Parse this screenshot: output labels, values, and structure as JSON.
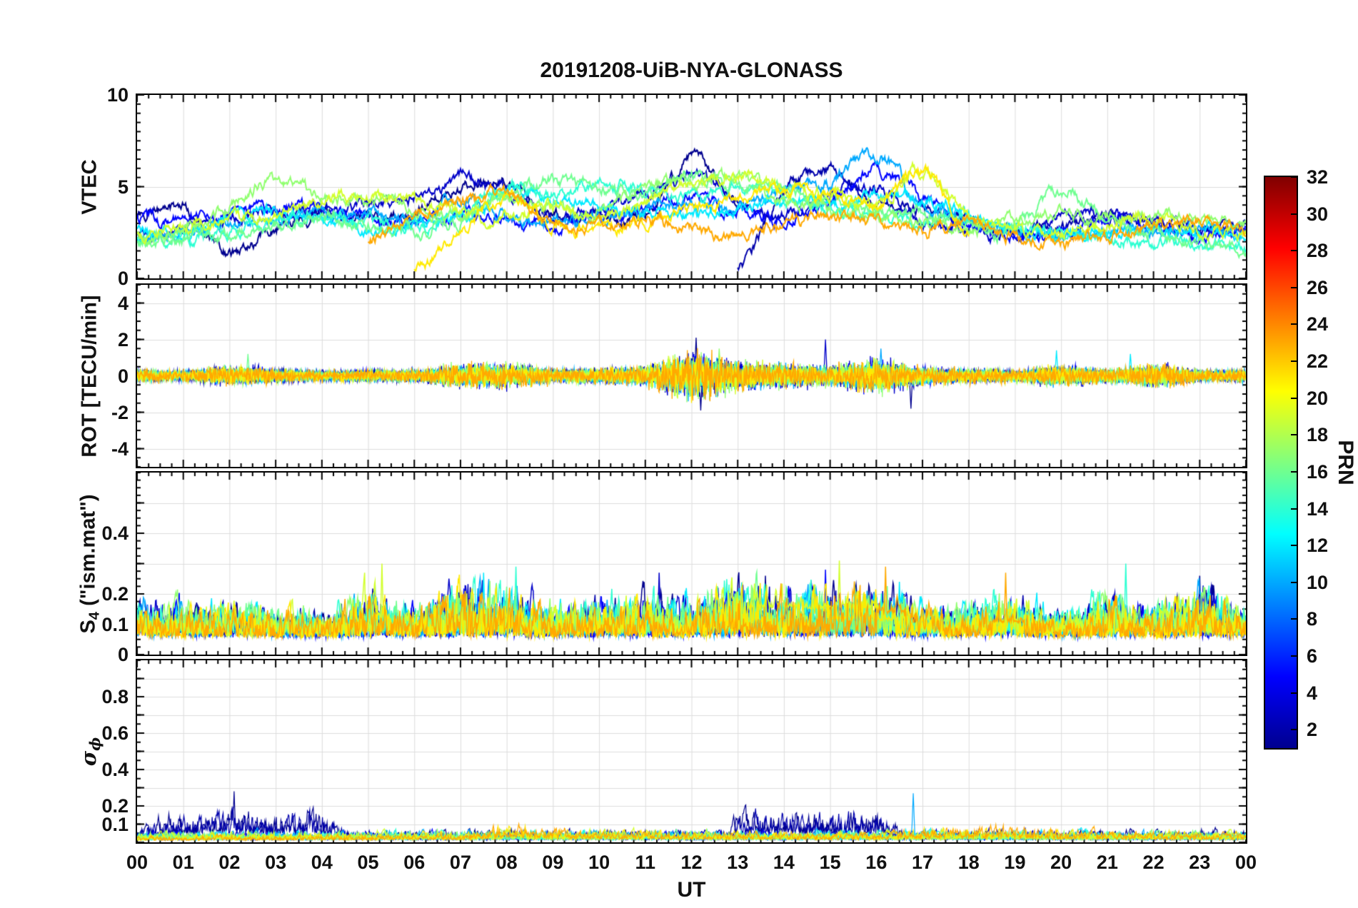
{
  "chart_data": {
    "type": "line",
    "title": "20191208-UiB-NYA-GLONASS",
    "xlabel": "UT",
    "x_range": [
      0,
      24
    ],
    "x_major": 1,
    "x_minor": 0.25,
    "grid": true,
    "xtick_labels": [
      "00",
      "01",
      "02",
      "03",
      "04",
      "05",
      "06",
      "07",
      "08",
      "09",
      "10",
      "11",
      "12",
      "13",
      "14",
      "15",
      "16",
      "17",
      "18",
      "19",
      "20",
      "21",
      "22",
      "23",
      "00"
    ],
    "colorbar": {
      "label": "PRN",
      "range": [
        1,
        32
      ],
      "ticks": [
        2,
        4,
        6,
        8,
        10,
        12,
        14,
        16,
        18,
        20,
        22,
        24,
        26,
        28,
        30,
        32
      ],
      "stops": [
        [
          0,
          "#00008f"
        ],
        [
          0.125,
          "#0000ff"
        ],
        [
          0.375,
          "#00ffff"
        ],
        [
          0.625,
          "#ffff00"
        ],
        [
          0.875,
          "#ff0000"
        ],
        [
          1,
          "#800000"
        ]
      ]
    },
    "prns": [
      1,
      2,
      3,
      5,
      10,
      12,
      14,
      16,
      17,
      19,
      21,
      23
    ],
    "panels": [
      {
        "name": "vtec",
        "ylabel": {
          "pre": "VTEC",
          "sub": "",
          "post": "",
          "math": false
        },
        "ylim": [
          0,
          10
        ],
        "yticks": [
          0,
          5,
          10
        ],
        "ylabels": [
          {
            "v": 0,
            "t": "0"
          },
          {
            "v": 5,
            "t": "5"
          },
          {
            "v": 10,
            "t": "10"
          }
        ],
        "yminor": 0.5,
        "noise": 0.14,
        "series": [
          {
            "prn": 1,
            "x0": 0,
            "dx": 1,
            "y": [
              3.5,
              3.8,
              1.4,
              2.8,
              3.5,
              3.2,
              3.7,
              5.0,
              5.2,
              3.4,
              3.2,
              3.6,
              6.5,
              4.0
            ]
          },
          {
            "prn": 2,
            "x0": 13,
            "dx": 1,
            "y": [
              0.4,
              4.6,
              5.8,
              4.2,
              3.7,
              3.2,
              2.6,
              2.9,
              3.4,
              3.0,
              2.8,
              3.0
            ]
          },
          {
            "prn": 3,
            "x0": 0,
            "dx": 1,
            "y": [
              2.5,
              2.7,
              3.2,
              3.6,
              3.9,
              3.8,
              4.3,
              5.4,
              4.6,
              3.5,
              3.9,
              4.5,
              5.6,
              4.1,
              3.4,
              4.5,
              5.0,
              3.1,
              2.7,
              2.3,
              3.4,
              3.6,
              3.1,
              2.6,
              2.5
            ]
          },
          {
            "prn": 5,
            "x0": 0,
            "dx": 1,
            "y": [
              3.3,
              3.1,
              3.4,
              3.8,
              3.7,
              3.3,
              2.9,
              3.4,
              3.2,
              2.9,
              3.2,
              3.6,
              4.4,
              3.7,
              3.3,
              4.2,
              5.9,
              4.4,
              2.8,
              2.4,
              2.3,
              3.2,
              2.9,
              2.4,
              2.6
            ]
          },
          {
            "prn": 10,
            "x0": 0,
            "dx": 1,
            "y": [
              2.2,
              2.4,
              2.9,
              3.3,
              3.6,
              3.4,
              3.1,
              4.4,
              3.3,
              3.0,
              3.4,
              3.8,
              4.2,
              3.6,
              4.8,
              5.2,
              6.8,
              4.0,
              3.3,
              2.6,
              2.3,
              2.5,
              2.7,
              2.9,
              2.6
            ]
          },
          {
            "prn": 12,
            "x0": 0,
            "dx": 1,
            "y": [
              2.6,
              2.3,
              3.4,
              3.7,
              3.3,
              2.6,
              3.0,
              3.3,
              4.9,
              4.5,
              4.0,
              3.6,
              3.3,
              3.8,
              4.3,
              3.9,
              4.6,
              4.3,
              3.7,
              2.5,
              2.2,
              2.4,
              2.7,
              2.5,
              2.3
            ]
          },
          {
            "prn": 14,
            "x0": 0,
            "dx": 1,
            "y": [
              2.1,
              2.2,
              2.6,
              3.0,
              3.4,
              3.1,
              2.8,
              3.5,
              5.0,
              4.6,
              5.2,
              4.8,
              4.4,
              4.9,
              4.4,
              3.7,
              3.3,
              2.9,
              3.1,
              2.7,
              2.4,
              2.2,
              2.0,
              1.8,
              1.5
            ]
          },
          {
            "prn": 16,
            "x0": 0,
            "dx": 1,
            "y": [
              2.0,
              2.1,
              2.4,
              2.8,
              3.2,
              3.0,
              2.7,
              3.1,
              4.6,
              5.3,
              4.9,
              4.5,
              5.6,
              5.1,
              4.7,
              4.2,
              3.8,
              3.4,
              2.9,
              2.6,
              4.8,
              3.2,
              2.4,
              2.1,
              1.4
            ]
          },
          {
            "prn": 17,
            "x0": 0,
            "dx": 1,
            "y": [
              2.3,
              2.6,
              4.0,
              5.5,
              4.4,
              4.3,
              3.9,
              3.5,
              4.4,
              4.0,
              3.6,
              5.0,
              5.3,
              5.5,
              4.3,
              3.9,
              3.5,
              3.0,
              2.7,
              3.1,
              3.5,
              3.3,
              3.6,
              3.2,
              2.9
            ]
          },
          {
            "prn": 19,
            "x0": 0,
            "dx": 1,
            "y": [
              2.4,
              2.7,
              3.1,
              3.5,
              4.3,
              4.5,
              4.1,
              3.7,
              3.3,
              3.8,
              3.4,
              4.2,
              5.2,
              5.6,
              5.0,
              4.5,
              4.0,
              5.9,
              3.4,
              2.8,
              2.5,
              2.9,
              3.3,
              2.8,
              2.4
            ]
          },
          {
            "prn": 21,
            "x0": 6,
            "dx": 1,
            "y": [
              0.4,
              2.5,
              4.3,
              3.0,
              2.7,
              3.1,
              3.7,
              4.3,
              4.9,
              4.4,
              4.0,
              5.8,
              2.4
            ]
          },
          {
            "prn": 23,
            "x0": 5,
            "dx": 1,
            "y": [
              2.0,
              3.5,
              4.2,
              4.4,
              3.1,
              2.8,
              3.3,
              2.6,
              2.4,
              2.9,
              3.4,
              3.0,
              2.6,
              3.2,
              2.2,
              1.9,
              2.3,
              2.8,
              3.1,
              2.7
            ]
          }
        ]
      },
      {
        "name": "rot",
        "ylabel": {
          "pre": "ROT [TECU/min]",
          "sub": "",
          "post": "",
          "math": false
        },
        "ylim": [
          -5,
          5
        ],
        "yticks": [
          -4,
          -2,
          0,
          2,
          4
        ],
        "ylabels": [
          {
            "v": -4,
            "t": "-4"
          },
          {
            "v": -2,
            "t": "-2"
          },
          {
            "v": 0,
            "t": "0"
          },
          {
            "v": 2,
            "t": "2"
          },
          {
            "v": 4,
            "t": "4"
          }
        ],
        "yminor": 0.5,
        "envelope": {
          "x0": 0,
          "dx": 1,
          "y": [
            0.3,
            0.25,
            0.45,
            0.35,
            0.25,
            0.3,
            0.3,
            0.55,
            0.6,
            0.35,
            0.4,
            0.5,
            1.1,
            0.7,
            0.6,
            0.5,
            0.8,
            0.45,
            0.35,
            0.3,
            0.5,
            0.35,
            0.55,
            0.3,
            0.3
          ]
        },
        "spikes": [
          {
            "prn": 1,
            "x": 12.1,
            "y": 2.1
          },
          {
            "prn": 1,
            "x": 12.2,
            "y": -1.9
          },
          {
            "prn": 3,
            "x": 14.9,
            "y": 2.0
          },
          {
            "prn": 1,
            "x": 16.75,
            "y": -1.8
          },
          {
            "prn": 10,
            "x": 16.1,
            "y": 1.5
          },
          {
            "prn": 12,
            "x": 19.9,
            "y": 1.4
          },
          {
            "prn": 16,
            "x": 2.4,
            "y": 1.2
          },
          {
            "prn": 12,
            "x": 21.5,
            "y": 1.2
          },
          {
            "prn": 17,
            "x": 12.6,
            "y": 1.5
          }
        ]
      },
      {
        "name": "s4",
        "ylabel": {
          "pre": "S",
          "sub": "4",
          "post": " (\"ism.mat\")",
          "math": false
        },
        "ylim": [
          0,
          0.6
        ],
        "yticks": [
          0,
          0.1,
          0.2,
          0.3,
          0.4,
          0.5
        ],
        "ylabels": [
          {
            "v": 0,
            "t": "0"
          },
          {
            "v": 0.1,
            "t": "0.1"
          },
          {
            "v": 0.2,
            "t": "0.2"
          },
          {
            "v": 0.4,
            "t": "0.4"
          }
        ],
        "yminor": 0.025,
        "envelope": {
          "x0": 0,
          "dx": 1,
          "y": [
            0.1,
            0.09,
            0.09,
            0.08,
            0.07,
            0.12,
            0.09,
            0.15,
            0.13,
            0.09,
            0.1,
            0.11,
            0.1,
            0.16,
            0.12,
            0.14,
            0.14,
            0.09,
            0.09,
            0.11,
            0.07,
            0.11,
            0.09,
            0.13,
            0.09
          ]
        },
        "bumps": [
          {
            "prn": 19,
            "x1": 13.2,
            "x2": 16.0,
            "y": 0.2
          },
          {
            "prn": 12,
            "x1": 7.2,
            "x2": 7.9,
            "y": 0.15
          },
          {
            "prn": 1,
            "x1": 7.0,
            "x2": 7.6,
            "y": 0.16
          },
          {
            "prn": 3,
            "x1": 9.5,
            "x2": 11.5,
            "y": 0.13
          },
          {
            "prn": 1,
            "x1": 13.3,
            "x2": 14.2,
            "y": 0.17
          },
          {
            "prn": 5,
            "x1": 13.4,
            "x2": 14.1,
            "y": 0.15
          },
          {
            "prn": 21,
            "x1": 15.0,
            "x2": 16.4,
            "y": 0.15
          },
          {
            "prn": 23,
            "x1": 16.0,
            "x2": 16.6,
            "y": 0.18
          },
          {
            "prn": 23,
            "x1": 18.5,
            "x2": 19.2,
            "y": 0.14
          },
          {
            "prn": 1,
            "x1": 21.3,
            "x2": 21.9,
            "y": 0.13
          }
        ],
        "spikes": [
          {
            "prn": 19,
            "x": 5.3,
            "y": 0.3
          },
          {
            "prn": 12,
            "x": 7.5,
            "y": 0.27
          },
          {
            "prn": 14,
            "x": 8.2,
            "y": 0.29
          },
          {
            "prn": 3,
            "x": 11.3,
            "y": 0.27
          },
          {
            "prn": 1,
            "x": 13.6,
            "y": 0.26
          },
          {
            "prn": 5,
            "x": 14.9,
            "y": 0.28
          },
          {
            "prn": 19,
            "x": 15.2,
            "y": 0.31
          },
          {
            "prn": 23,
            "x": 16.2,
            "y": 0.29
          },
          {
            "prn": 12,
            "x": 16.5,
            "y": 0.24
          },
          {
            "prn": 23,
            "x": 18.8,
            "y": 0.27
          },
          {
            "prn": 14,
            "x": 21.4,
            "y": 0.3
          },
          {
            "prn": 1,
            "x": 23.0,
            "y": 0.26
          }
        ]
      },
      {
        "name": "sigma_phi",
        "ylabel": {
          "pre": "σ",
          "sub": "ϕ",
          "post": "",
          "math": true
        },
        "ylim": [
          0,
          1
        ],
        "yticks": [
          0,
          0.1,
          0.2,
          0.3,
          0.4,
          0.5,
          0.6,
          0.7,
          0.8,
          0.9
        ],
        "ylabels": [
          {
            "v": 0.1,
            "t": "0.1"
          },
          {
            "v": 0.2,
            "t": "0.2"
          },
          {
            "v": 0.4,
            "t": "0.4"
          },
          {
            "v": 0.6,
            "t": "0.6"
          },
          {
            "v": 0.8,
            "t": "0.8"
          }
        ],
        "yminor": 0.05,
        "levels": [
          {
            "prns": [
              1,
              2
            ],
            "points": [
              [
                0,
                0.06
              ],
              [
                0.8,
                0.12
              ],
              [
                2,
                0.14
              ],
              [
                3,
                0.12
              ],
              [
                4,
                0.13
              ],
              [
                4.6,
                0.05
              ],
              [
                12.8,
                0.05
              ],
              [
                13.1,
                0.13
              ],
              [
                14,
                0.14
              ],
              [
                15,
                0.13
              ],
              [
                16,
                0.13
              ],
              [
                16.6,
                0.05
              ],
              [
                24,
                0.05
              ]
            ]
          },
          {
            "prns": [
              21,
              23
            ],
            "points": [
              [
                0,
                0.03
              ],
              [
                7,
                0.04
              ],
              [
                8,
                0.07
              ],
              [
                9,
                0.06
              ],
              [
                10,
                0.05
              ],
              [
                16,
                0.04
              ],
              [
                17,
                0.06
              ],
              [
                19,
                0.07
              ],
              [
                20,
                0.05
              ],
              [
                24,
                0.04
              ]
            ]
          }
        ],
        "default_level": [
          [
            0,
            0.045
          ],
          [
            24,
            0.045
          ]
        ],
        "spikes": [
          {
            "prn": 1,
            "x": 2.1,
            "y": 0.28
          },
          {
            "prn": 10,
            "x": 16.8,
            "y": 0.27
          }
        ]
      }
    ]
  }
}
